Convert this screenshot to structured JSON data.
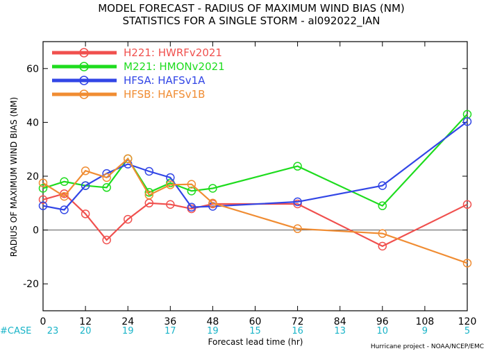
{
  "chart_data": {
    "type": "line",
    "title": "MODEL FORECAST - RADIUS OF MAXIMUM WIND BIAS (NM)",
    "subtitle": "STATISTICS FOR A SINGLE STORM - al092022_IAN",
    "xlabel": "Forecast lead time (hr)",
    "ylabel": "RADIUS OF MAXIMUM WIND BIAS (NM)",
    "xlim": [
      0,
      120
    ],
    "ylim": [
      -30,
      70
    ],
    "xticks": [
      0,
      12,
      24,
      36,
      48,
      60,
      72,
      84,
      96,
      108,
      120
    ],
    "yticks": [
      -20,
      0,
      20,
      40,
      60
    ],
    "zero_line": true,
    "legend_placement": "top-left",
    "case_label": "#CASE",
    "case_counts": [
      {
        "x": 0,
        "n": "23"
      },
      {
        "x": 12,
        "n": "20"
      },
      {
        "x": 24,
        "n": "19"
      },
      {
        "x": 36,
        "n": "17"
      },
      {
        "x": 48,
        "n": "19"
      },
      {
        "x": 60,
        "n": "15"
      },
      {
        "x": 72,
        "n": "16"
      },
      {
        "x": 84,
        "n": "13"
      },
      {
        "x": 96,
        "n": "10"
      },
      {
        "x": 108,
        "n": "9"
      },
      {
        "x": 120,
        "n": "5"
      }
    ],
    "credit": "Hurricane project - NOAA/NCEP/EMC",
    "series": [
      {
        "name": "H221: HWRFv2021",
        "color": "#f0504e",
        "points": [
          [
            0,
            11.3
          ],
          [
            6,
            13.5
          ],
          [
            12,
            6
          ],
          [
            18,
            -3.7
          ],
          [
            24,
            4
          ],
          [
            30,
            10
          ],
          [
            36,
            9.5
          ],
          [
            42,
            7.9
          ],
          [
            48,
            9.7
          ],
          [
            72,
            9.7
          ],
          [
            96,
            -6
          ],
          [
            120,
            9.5
          ]
        ]
      },
      {
        "name": "M221: HMONv2021",
        "color": "#1edc1e",
        "points": [
          [
            0,
            15.5
          ],
          [
            6,
            18
          ],
          [
            12,
            16.5
          ],
          [
            18,
            15.8
          ],
          [
            24,
            26.5
          ],
          [
            30,
            14
          ],
          [
            36,
            17.5
          ],
          [
            42,
            14.5
          ],
          [
            48,
            15.5
          ],
          [
            72,
            23.7
          ],
          [
            96,
            9
          ],
          [
            120,
            43
          ]
        ]
      },
      {
        "name": "HFSA: HAFSv1A",
        "color": "#3246e6",
        "points": [
          [
            0,
            9
          ],
          [
            6,
            7.5
          ],
          [
            12,
            16.5
          ],
          [
            18,
            21
          ],
          [
            24,
            24.5
          ],
          [
            30,
            21.8
          ],
          [
            36,
            19.5
          ],
          [
            42,
            8.5
          ],
          [
            48,
            8.8
          ],
          [
            72,
            10.5
          ],
          [
            96,
            16.5
          ],
          [
            120,
            40.3
          ]
        ]
      },
      {
        "name": "HFSB: HAFSv1B",
        "color": "#f08c32",
        "points": [
          [
            0,
            17.5
          ],
          [
            6,
            12.5
          ],
          [
            12,
            22
          ],
          [
            18,
            19.5
          ],
          [
            24,
            26.5
          ],
          [
            30,
            13
          ],
          [
            36,
            16.8
          ],
          [
            42,
            17
          ],
          [
            48,
            10
          ],
          [
            72,
            0.5
          ],
          [
            96,
            -1.3
          ],
          [
            120,
            -12.3
          ]
        ]
      }
    ]
  }
}
